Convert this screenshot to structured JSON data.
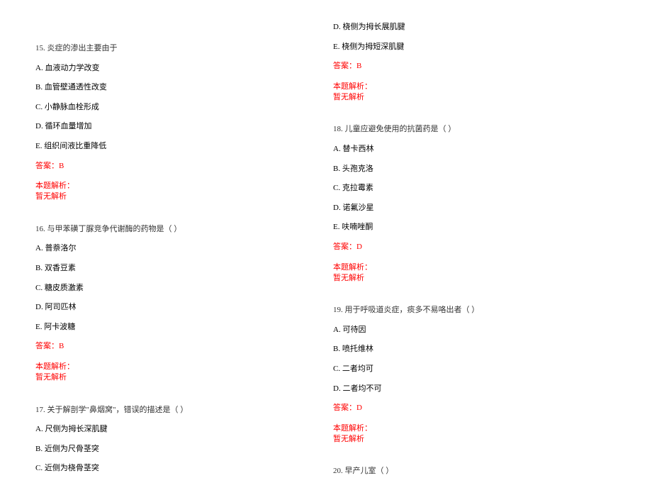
{
  "text_color": "#000000",
  "answer_color": "#ff0000",
  "background_color": "#ffffff",
  "font_size": 11,
  "font_family": "SimSun",
  "left_column": {
    "q15": {
      "title": "15. 炎症的渗出主要由于",
      "options": [
        "A. 血液动力学改变",
        "B. 血管壁通透性改变",
        "C. 小静脉血栓形成",
        "D. 循环血量增加",
        "E. 组织间液比重降低"
      ],
      "answer": "答案：B",
      "explain_label": "本题解析：",
      "explain_text": "暂无解析"
    },
    "q16": {
      "title": "16. 与甲苯磺丁脲竞争代谢酶的药物是（  ）",
      "options": [
        "A. 普萘洛尔",
        "B. 双香豆素",
        "C. 糖皮质激素",
        "D. 阿司匹林",
        "E. 阿卡波糖"
      ],
      "answer": "答案：B",
      "explain_label": "本题解析：",
      "explain_text": "暂无解析"
    },
    "q17": {
      "title": "17. 关于解剖学\"鼻烟窝\"，错误的描述是（  ）",
      "options": [
        "A. 尺侧为拇长深肌腱",
        "B. 近侧为尺骨茎突",
        "C. 近侧为桡骨茎突"
      ]
    }
  },
  "right_column": {
    "q17_cont": {
      "options": [
        "D. 桡侧为拇长展肌腱",
        "E. 桡侧为拇短深肌腱"
      ],
      "answer": "答案：B",
      "explain_label": "本题解析：",
      "explain_text": "暂无解析"
    },
    "q18": {
      "title": "18. 儿童应避免使用的抗菌药是（  ）",
      "options": [
        "A. 替卡西林",
        "B. 头孢克洛",
        "C. 克拉霉素",
        "D. 诺氟沙星",
        "E. 呋喃唑酮"
      ],
      "answer": "答案：D",
      "explain_label": "本题解析：",
      "explain_text": "暂无解析"
    },
    "q19": {
      "title": "19. 用于呼吸道炎症，痰多不易咯出者（  ）",
      "options": [
        "A. 可待因",
        "B. 喷托维林",
        "C. 二者均可",
        "D. 二者均不可"
      ],
      "answer": "答案：D",
      "explain_label": "本题解析：",
      "explain_text": "暂无解析"
    },
    "q20": {
      "title": "20. 早产儿室（  ）"
    }
  }
}
